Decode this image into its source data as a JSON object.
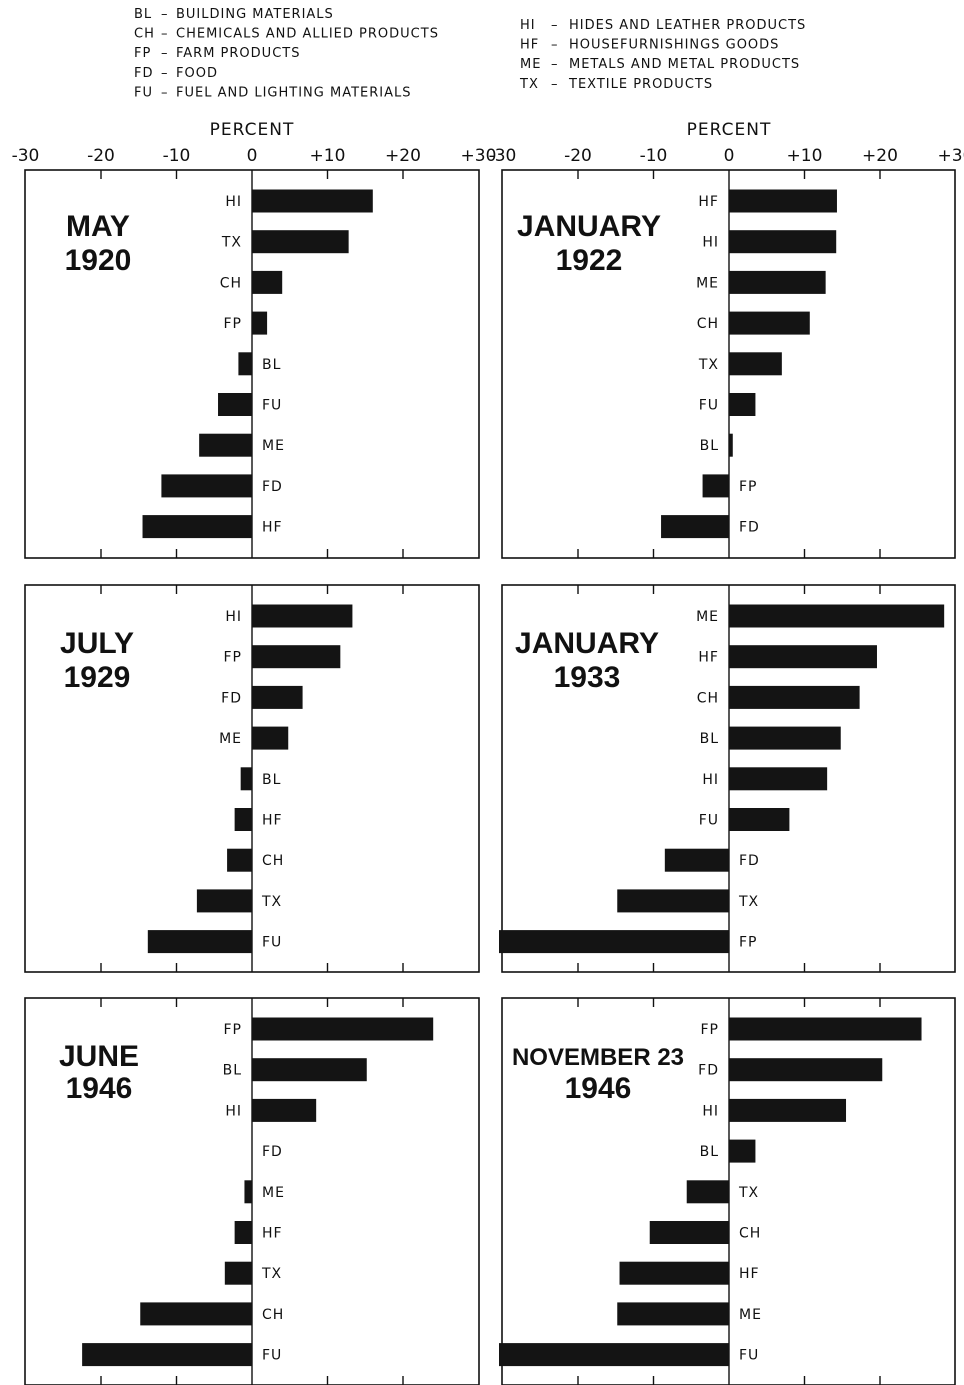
{
  "legend": {
    "left": [
      {
        "code": "BL",
        "label": "BUILDING MATERIALS"
      },
      {
        "code": "CH",
        "label": "CHEMICALS AND ALLIED PRODUCTS"
      },
      {
        "code": "FP",
        "label": "FARM PRODUCTS"
      },
      {
        "code": "FD",
        "label": "FOOD"
      },
      {
        "code": "FU",
        "label": "FUEL AND LIGHTING MATERIALS"
      }
    ],
    "right": [
      {
        "code": "HI",
        "label": "HIDES AND LEATHER PRODUCTS"
      },
      {
        "code": "HF",
        "label": "HOUSEFURNISHINGS GOODS"
      },
      {
        "code": "ME",
        "label": "METALS AND METAL PRODUCTS"
      },
      {
        "code": "TX",
        "label": "TEXTILE PRODUCTS"
      }
    ]
  },
  "axis": {
    "title": "PERCENT",
    "tick_labels": [
      "-30",
      "-20",
      "-10",
      "0",
      "+10",
      "+20",
      "+30"
    ]
  },
  "chart_data": [
    {
      "type": "bar",
      "orientation": "horizontal",
      "title": "MAY 1920",
      "xlabel": "PERCENT",
      "xlim": [
        -30,
        30
      ],
      "categories": [
        "HI",
        "TX",
        "CH",
        "FP",
        "BL",
        "FU",
        "ME",
        "FD",
        "HF"
      ],
      "values": [
        16,
        12.8,
        4,
        2,
        -1.8,
        -4.5,
        -7,
        -12,
        -14.5
      ]
    },
    {
      "type": "bar",
      "orientation": "horizontal",
      "title": "JANUARY 1922",
      "xlabel": "PERCENT",
      "xlim": [
        -30,
        30
      ],
      "categories": [
        "HF",
        "HI",
        "ME",
        "CH",
        "TX",
        "FU",
        "BL",
        "FP",
        "FD"
      ],
      "values": [
        14.3,
        14.2,
        12.8,
        10.7,
        7,
        3.5,
        0.5,
        -3.5,
        -9
      ]
    },
    {
      "type": "bar",
      "orientation": "horizontal",
      "title": "JULY 1929",
      "xlabel": "",
      "xlim": [
        -30,
        30
      ],
      "categories": [
        "HI",
        "FP",
        "FD",
        "ME",
        "BL",
        "HF",
        "CH",
        "TX",
        "FU"
      ],
      "values": [
        13.3,
        11.7,
        6.7,
        4.8,
        -1.5,
        -2.3,
        -3.3,
        -7.3,
        -13.8
      ]
    },
    {
      "type": "bar",
      "orientation": "horizontal",
      "title": "JANUARY 1933",
      "xlabel": "",
      "xlim": [
        -30,
        30
      ],
      "categories": [
        "ME",
        "HF",
        "CH",
        "BL",
        "HI",
        "FU",
        "FD",
        "TX",
        "FP"
      ],
      "values": [
        28.5,
        19.6,
        17.3,
        14.8,
        13,
        8,
        -8.5,
        -14.8,
        -30.5
      ]
    },
    {
      "type": "bar",
      "orientation": "horizontal",
      "title": "JUNE 1946",
      "xlabel": "",
      "xlim": [
        -30,
        30
      ],
      "categories": [
        "FP",
        "BL",
        "HI",
        "FD",
        "ME",
        "HF",
        "TX",
        "CH",
        "FU"
      ],
      "values": [
        24,
        15.2,
        8.5,
        0,
        -1,
        -2.3,
        -3.6,
        -14.8,
        -22.5
      ]
    },
    {
      "type": "bar",
      "orientation": "horizontal",
      "title": "NOVEMBER 23 1946",
      "xlabel": "",
      "xlim": [
        -30,
        30
      ],
      "categories": [
        "FP",
        "FD",
        "HI",
        "BL",
        "TX",
        "CH",
        "HF",
        "ME",
        "FU"
      ],
      "values": [
        25.5,
        20.3,
        15.5,
        3.5,
        -5.6,
        -10.5,
        -14.5,
        -14.8,
        -31
      ]
    }
  ]
}
